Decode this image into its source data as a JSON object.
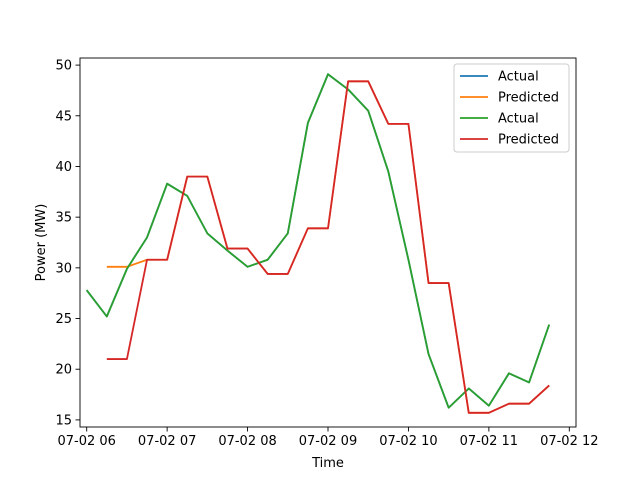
{
  "chart_data": {
    "type": "line",
    "title": "",
    "xlabel": "Time",
    "ylabel": "Power (MW)",
    "x_unit": "time (MM-DD HH:MM)",
    "x": [
      "07-02 06:00",
      "07-02 06:15",
      "07-02 06:30",
      "07-02 06:45",
      "07-02 07:00",
      "07-02 07:15",
      "07-02 07:30",
      "07-02 07:45",
      "07-02 08:00",
      "07-02 08:15",
      "07-02 08:30",
      "07-02 08:45",
      "07-02 09:00",
      "07-02 09:15",
      "07-02 09:30",
      "07-02 09:45",
      "07-02 10:00",
      "07-02 10:15",
      "07-02 10:30",
      "07-02 10:45",
      "07-02 11:00",
      "07-02 11:15",
      "07-02 11:30",
      "07-02 11:45"
    ],
    "xlim": [
      "07-02 05:55",
      "07-02 12:05"
    ],
    "ylim": [
      14.3,
      50.7
    ],
    "x_ticks": [
      "07-02 06",
      "07-02 07",
      "07-02 08",
      "07-02 09",
      "07-02 10",
      "07-02 11",
      "07-02 12"
    ],
    "x_tick_values": [
      "07-02 06:00",
      "07-02 07:00",
      "07-02 08:00",
      "07-02 09:00",
      "07-02 10:00",
      "07-02 11:00",
      "07-02 12:00"
    ],
    "y_ticks": [
      "15",
      "20",
      "25",
      "30",
      "35",
      "40",
      "45",
      "50"
    ],
    "y_tick_values": [
      15,
      20,
      25,
      30,
      35,
      40,
      45,
      50
    ],
    "grid": false,
    "legend_position": "top-right",
    "series": [
      {
        "name": "Actual",
        "color": "#1f77b4",
        "values": [
          27.8,
          25.2,
          29.9,
          33.0,
          38.3,
          37.1,
          33.4,
          31.7,
          30.1,
          30.8,
          33.4,
          44.3,
          49.1,
          47.6,
          45.5,
          39.5,
          30.8,
          21.5,
          16.2,
          18.1,
          16.4,
          19.6,
          18.7,
          24.4
        ]
      },
      {
        "name": "Predicted",
        "color": "#ff7f0e",
        "values": [
          null,
          30.1,
          30.1,
          30.8,
          30.8,
          39.0,
          39.0,
          31.9,
          31.9,
          29.4,
          29.4,
          33.9,
          33.9,
          48.4,
          48.4,
          44.2,
          44.2,
          28.5,
          28.5,
          15.7,
          15.7,
          16.6,
          16.6,
          18.4
        ]
      },
      {
        "name": "Actual",
        "color": "#2ca02c",
        "values": [
          27.8,
          25.2,
          29.9,
          33.0,
          38.3,
          37.1,
          33.4,
          31.7,
          30.1,
          30.8,
          33.4,
          44.3,
          49.1,
          47.6,
          45.5,
          39.5,
          30.8,
          21.5,
          16.2,
          18.1,
          16.4,
          19.6,
          18.7,
          24.4
        ]
      },
      {
        "name": "Predicted",
        "color": "#d62728",
        "values": [
          null,
          21.0,
          21.0,
          30.8,
          30.8,
          39.0,
          39.0,
          31.9,
          31.9,
          29.4,
          29.4,
          33.9,
          33.9,
          48.4,
          48.4,
          44.2,
          44.2,
          28.5,
          28.5,
          15.7,
          15.7,
          16.6,
          16.6,
          18.4
        ]
      }
    ]
  }
}
